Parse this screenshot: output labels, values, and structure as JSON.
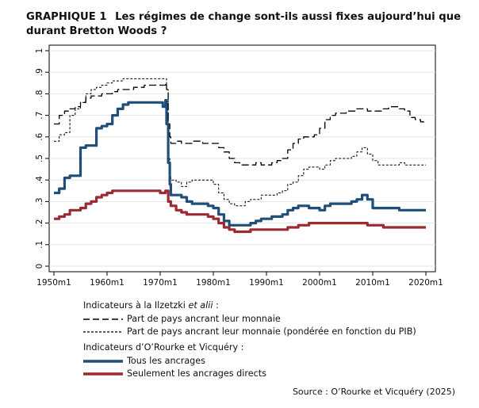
{
  "title": {
    "number": "GRAPHIQUE 1",
    "text": "Les régimes de change sont-ils aussi fixes aujourd’hui que durant Bretton Woods ?"
  },
  "chart_data": {
    "type": "line",
    "ylim": [
      0,
      1
    ],
    "xlim": [
      1950,
      2020
    ],
    "y_ticks": [
      {
        "value": 0,
        "label": "0"
      },
      {
        "value": 0.1,
        "label": ".1"
      },
      {
        "value": 0.2,
        "label": ".2"
      },
      {
        "value": 0.3,
        "label": ".3"
      },
      {
        "value": 0.4,
        "label": ".4"
      },
      {
        "value": 0.5,
        "label": ".5"
      },
      {
        "value": 0.6,
        "label": ".6"
      },
      {
        "value": 0.7,
        "label": ".7"
      },
      {
        "value": 0.8,
        "label": ".8"
      },
      {
        "value": 0.9,
        "label": ".9"
      },
      {
        "value": 1,
        "label": "1"
      }
    ],
    "x_ticks": [
      {
        "value": 1950,
        "label": "1950m1"
      },
      {
        "value": 1960,
        "label": "1960m1"
      },
      {
        "value": 1970,
        "label": "1970m1"
      },
      {
        "value": 1980,
        "label": "1980m1"
      },
      {
        "value": 1990,
        "label": "1990m1"
      },
      {
        "value": 2000,
        "label": "2000m1"
      },
      {
        "value": 2010,
        "label": "2010m1"
      },
      {
        "value": 2020,
        "label": "2020m1"
      }
    ],
    "grid": true,
    "series": [
      {
        "name": "Part de pays ancrant leur monnaie",
        "color": "#000000",
        "style": "longdash",
        "width": 1.3,
        "x": [
          1950,
          1951,
          1952,
          1953,
          1954,
          1955,
          1956,
          1957,
          1958,
          1959,
          1960,
          1961,
          1962,
          1963,
          1964,
          1965,
          1966,
          1967,
          1968,
          1969,
          1970,
          1971,
          1971.2,
          1971.5,
          1971.8,
          1972,
          1973,
          1974,
          1975,
          1976,
          1977,
          1978,
          1979,
          1980,
          1981,
          1982,
          1983,
          1984,
          1985,
          1986,
          1987,
          1988,
          1989,
          1990,
          1991,
          1992,
          1993,
          1994,
          1995,
          1996,
          1997,
          1998,
          1999,
          2000,
          2001,
          2002,
          2003,
          2004,
          2005,
          2006,
          2007,
          2008,
          2009,
          2010,
          2011,
          2012,
          2013,
          2014,
          2015,
          2016,
          2017,
          2018,
          2019,
          2020
        ],
        "y": [
          0.66,
          0.7,
          0.72,
          0.73,
          0.74,
          0.76,
          0.78,
          0.79,
          0.79,
          0.8,
          0.8,
          0.81,
          0.82,
          0.82,
          0.82,
          0.83,
          0.83,
          0.84,
          0.84,
          0.84,
          0.84,
          0.85,
          0.82,
          0.66,
          0.6,
          0.57,
          0.58,
          0.57,
          0.57,
          0.58,
          0.58,
          0.57,
          0.57,
          0.57,
          0.55,
          0.53,
          0.5,
          0.48,
          0.47,
          0.47,
          0.47,
          0.48,
          0.47,
          0.47,
          0.48,
          0.49,
          0.5,
          0.54,
          0.57,
          0.59,
          0.6,
          0.6,
          0.61,
          0.64,
          0.68,
          0.7,
          0.71,
          0.71,
          0.72,
          0.72,
          0.73,
          0.73,
          0.72,
          0.72,
          0.72,
          0.73,
          0.74,
          0.74,
          0.73,
          0.72,
          0.69,
          0.68,
          0.67,
          0.67
        ]
      },
      {
        "name": "Part de pays ancrant leur monnaie (pondérée en fonction du PIB)",
        "color": "#000000",
        "style": "shortdash",
        "width": 1.0,
        "x": [
          1950,
          1951,
          1952,
          1953,
          1954,
          1955,
          1956,
          1957,
          1958,
          1959,
          1960,
          1961,
          1962,
          1963,
          1964,
          1965,
          1966,
          1967,
          1968,
          1969,
          1970,
          1971,
          1971.2,
          1971.5,
          1971.8,
          1972,
          1973,
          1974,
          1975,
          1976,
          1977,
          1978,
          1979,
          1980,
          1981,
          1982,
          1983,
          1984,
          1985,
          1986,
          1987,
          1988,
          1989,
          1990,
          1991,
          1992,
          1993,
          1994,
          1995,
          1996,
          1997,
          1998,
          1999,
          2000,
          2001,
          2002,
          2003,
          2004,
          2005,
          2006,
          2007,
          2008,
          2009,
          2010,
          2011,
          2012,
          2013,
          2014,
          2015,
          2016,
          2017,
          2018,
          2019,
          2020
        ],
        "y": [
          0.58,
          0.61,
          0.62,
          0.7,
          0.73,
          0.76,
          0.8,
          0.82,
          0.83,
          0.84,
          0.85,
          0.86,
          0.86,
          0.87,
          0.87,
          0.87,
          0.87,
          0.87,
          0.87,
          0.87,
          0.87,
          0.87,
          0.82,
          0.5,
          0.42,
          0.4,
          0.39,
          0.37,
          0.39,
          0.4,
          0.4,
          0.4,
          0.4,
          0.38,
          0.34,
          0.31,
          0.29,
          0.28,
          0.28,
          0.3,
          0.31,
          0.31,
          0.33,
          0.33,
          0.33,
          0.34,
          0.35,
          0.38,
          0.39,
          0.42,
          0.45,
          0.46,
          0.46,
          0.45,
          0.47,
          0.49,
          0.5,
          0.5,
          0.5,
          0.51,
          0.53,
          0.55,
          0.52,
          0.49,
          0.47,
          0.47,
          0.47,
          0.47,
          0.48,
          0.47,
          0.47,
          0.47,
          0.47,
          0.47
        ]
      },
      {
        "name": "Tous les ancrages",
        "color": "#1f4e79",
        "style": "solid",
        "width": 3.2,
        "x": [
          1950,
          1951,
          1952,
          1953,
          1954,
          1955,
          1956,
          1957,
          1958,
          1959,
          1960,
          1961,
          1962,
          1963,
          1964,
          1965,
          1966,
          1967,
          1968,
          1969,
          1970,
          1970.5,
          1971,
          1971.2,
          1971.5,
          1971.8,
          1972,
          1973,
          1974,
          1975,
          1976,
          1977,
          1978,
          1979,
          1980,
          1981,
          1982,
          1983,
          1984,
          1985,
          1986,
          1987,
          1988,
          1989,
          1990,
          1991,
          1992,
          1993,
          1994,
          1995,
          1996,
          1997,
          1998,
          1999,
          2000,
          2001,
          2002,
          2003,
          2004,
          2005,
          2006,
          2007,
          2008,
          2009,
          2010,
          2011,
          2012,
          2013,
          2014,
          2015,
          2016,
          2017,
          2018,
          2019,
          2020
        ],
        "y": [
          0.34,
          0.36,
          0.41,
          0.42,
          0.42,
          0.55,
          0.56,
          0.56,
          0.64,
          0.65,
          0.66,
          0.7,
          0.73,
          0.75,
          0.76,
          0.76,
          0.76,
          0.76,
          0.76,
          0.76,
          0.76,
          0.74,
          0.77,
          0.66,
          0.48,
          0.38,
          0.33,
          0.33,
          0.32,
          0.3,
          0.29,
          0.29,
          0.29,
          0.28,
          0.27,
          0.24,
          0.21,
          0.19,
          0.19,
          0.19,
          0.19,
          0.2,
          0.21,
          0.22,
          0.22,
          0.23,
          0.23,
          0.24,
          0.26,
          0.27,
          0.28,
          0.28,
          0.27,
          0.27,
          0.26,
          0.28,
          0.29,
          0.29,
          0.29,
          0.29,
          0.3,
          0.31,
          0.33,
          0.31,
          0.27,
          0.27,
          0.27,
          0.27,
          0.27,
          0.26,
          0.26,
          0.26,
          0.26,
          0.26,
          0.26
        ]
      },
      {
        "name": "Seulement les ancrages directs",
        "color": "#9b2a33",
        "style": "solid",
        "width": 3.2,
        "x": [
          1950,
          1951,
          1952,
          1953,
          1954,
          1955,
          1956,
          1957,
          1958,
          1959,
          1960,
          1961,
          1962,
          1963,
          1964,
          1965,
          1966,
          1967,
          1968,
          1969,
          1970,
          1971,
          1971.5,
          1972,
          1973,
          1974,
          1975,
          1976,
          1977,
          1978,
          1979,
          1980,
          1981,
          1982,
          1983,
          1984,
          1985,
          1986,
          1987,
          1988,
          1989,
          1990,
          1991,
          1992,
          1993,
          1994,
          1995,
          1996,
          1997,
          1998,
          1999,
          2000,
          2001,
          2002,
          2003,
          2004,
          2005,
          2006,
          2007,
          2008,
          2009,
          2010,
          2011,
          2012,
          2013,
          2014,
          2015,
          2016,
          2017,
          2018,
          2019,
          2020
        ],
        "y": [
          0.22,
          0.23,
          0.24,
          0.26,
          0.26,
          0.27,
          0.29,
          0.3,
          0.32,
          0.33,
          0.34,
          0.35,
          0.35,
          0.35,
          0.35,
          0.35,
          0.35,
          0.35,
          0.35,
          0.35,
          0.34,
          0.35,
          0.3,
          0.28,
          0.26,
          0.25,
          0.24,
          0.24,
          0.24,
          0.24,
          0.23,
          0.22,
          0.2,
          0.18,
          0.17,
          0.16,
          0.16,
          0.16,
          0.17,
          0.17,
          0.17,
          0.17,
          0.17,
          0.17,
          0.17,
          0.18,
          0.18,
          0.19,
          0.19,
          0.2,
          0.2,
          0.2,
          0.2,
          0.2,
          0.2,
          0.2,
          0.2,
          0.2,
          0.2,
          0.2,
          0.19,
          0.19,
          0.19,
          0.18,
          0.18,
          0.18,
          0.18,
          0.18,
          0.18,
          0.18,
          0.18,
          0.18
        ]
      }
    ]
  },
  "legend": {
    "group1_title_prefix": "Indicateurs à la Ilzetzki ",
    "group1_title_italic": "et alii",
    "group1_title_suffix": " :",
    "item1": "Part de pays ancrant leur monnaie",
    "item2": "Part de pays ancrant leur monnaie (pondérée en fonction du PIB)",
    "group2_title": "Indicateurs d’O’Rourke et Vicquéry :",
    "item3": "Tous les ancrages",
    "item4": "Seulement les ancrages directs"
  },
  "source": "Source : O’Rourke et Vicquéry (2025)"
}
